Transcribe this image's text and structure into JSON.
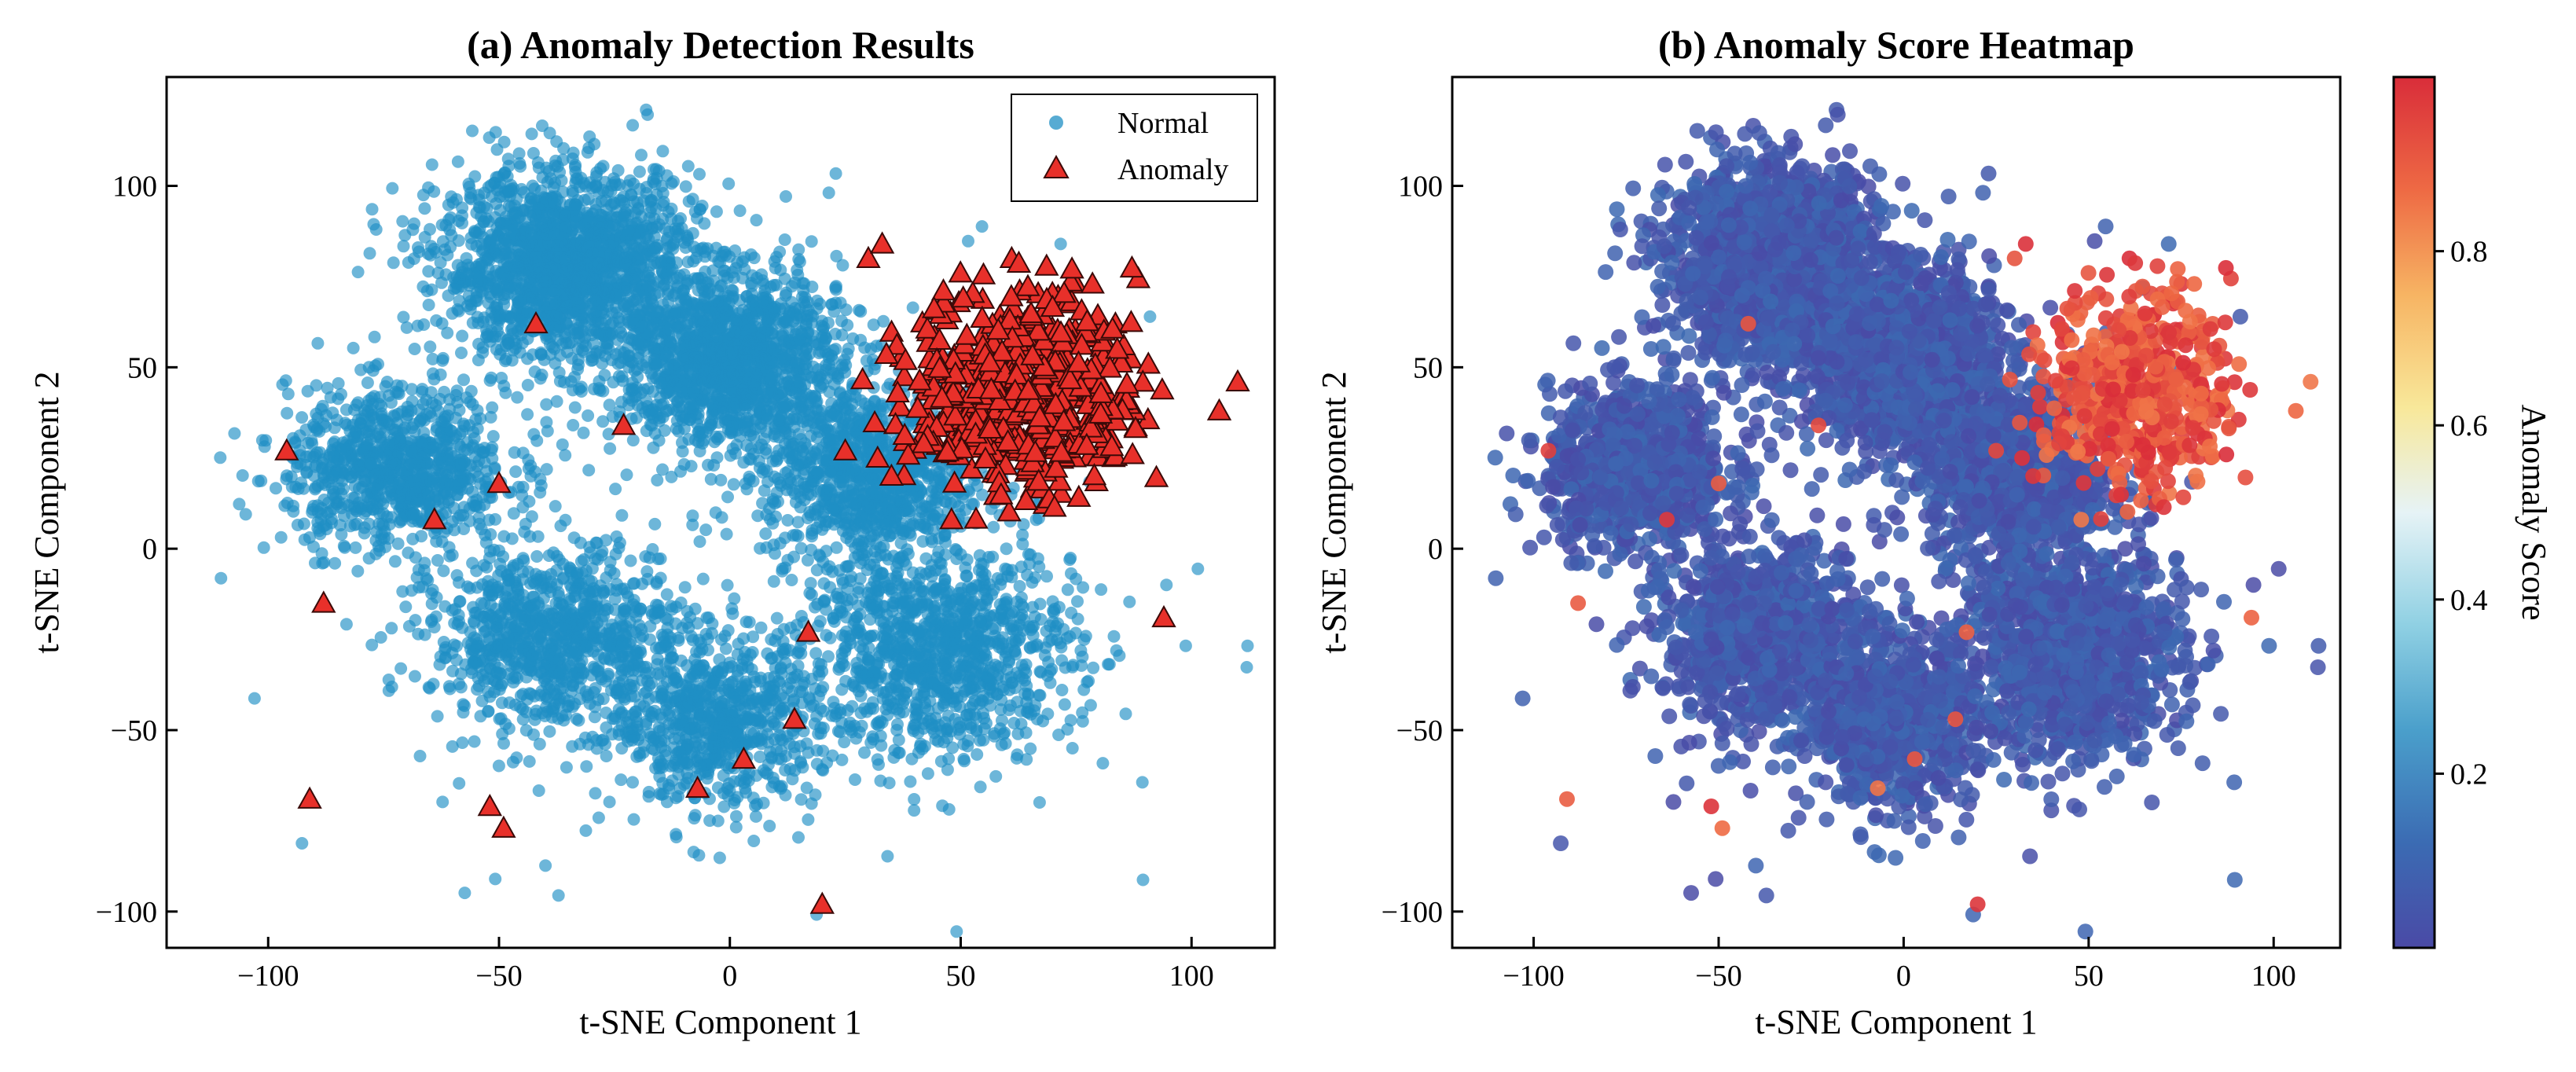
{
  "figure": {
    "panel_a_title": "(a) Anomaly Detection Results",
    "panel_b_title": "(b) Anomaly Score Heatmap",
    "colorbar_label": "Anomaly Score",
    "colorbar_ticks": [
      "0.2",
      "0.4",
      "0.6",
      "0.8"
    ]
  },
  "colors": {
    "normal": "#1f8fc4",
    "anomaly_fill": "#e8302a",
    "anomaly_edge": "#3a0a08",
    "cmap": [
      "#4a4aa6",
      "#3b6bb3",
      "#4a9fcb",
      "#8fd0e3",
      "#e6f3f6",
      "#f8e89a",
      "#f7b463",
      "#ee6a44",
      "#d92d3a"
    ]
  },
  "chart_data": [
    {
      "type": "scatter",
      "title": "(a) Anomaly Detection Results",
      "xlabel": "t-SNE Component 1",
      "ylabel": "t-SNE Component 2",
      "xlim": [
        -122,
        118
      ],
      "ylim": [
        -110,
        130
      ],
      "xticks": [
        -100,
        -50,
        0,
        50,
        100
      ],
      "yticks": [
        -100,
        -50,
        0,
        50,
        100
      ],
      "legend": {
        "position": "top-right",
        "entries": [
          "Normal",
          "Anomaly"
        ]
      },
      "normal_clusters": [
        {
          "cx": -35,
          "cy": 78,
          "sx": 14,
          "sy": 13,
          "n": 1700
        },
        {
          "cx": 0,
          "cy": 52,
          "sx": 12,
          "sy": 12,
          "n": 1400
        },
        {
          "cx": 30,
          "cy": 20,
          "sx": 11,
          "sy": 12,
          "n": 900
        },
        {
          "cx": -72,
          "cy": 22,
          "sx": 12,
          "sy": 11,
          "n": 900
        },
        {
          "cx": -38,
          "cy": -25,
          "sx": 13,
          "sy": 12,
          "n": 900
        },
        {
          "cx": -3,
          "cy": -48,
          "sx": 11,
          "sy": 11,
          "n": 700
        },
        {
          "cx": 45,
          "cy": -28,
          "sx": 15,
          "sy": 15,
          "n": 1100
        },
        {
          "cx": -10,
          "cy": 0,
          "sx": 55,
          "sy": 50,
          "n": 250
        }
      ],
      "anomaly_cluster": {
        "cx": 64,
        "cy": 44,
        "sx": 12,
        "sy": 14,
        "n": 520
      },
      "scattered_anomalies": [
        {
          "x": -96,
          "y": 27
        },
        {
          "x": -64,
          "y": 8
        },
        {
          "x": -50,
          "y": 18
        },
        {
          "x": -42,
          "y": 62
        },
        {
          "x": -23,
          "y": 34
        },
        {
          "x": -88,
          "y": -15
        },
        {
          "x": -91,
          "y": -69
        },
        {
          "x": -52,
          "y": -71
        },
        {
          "x": -49,
          "y": -77
        },
        {
          "x": -7,
          "y": -66
        },
        {
          "x": 3,
          "y": -58
        },
        {
          "x": 14,
          "y": -47
        },
        {
          "x": 17,
          "y": -23
        },
        {
          "x": 20,
          "y": -98
        },
        {
          "x": 94,
          "y": -19
        },
        {
          "x": 25,
          "y": 27
        },
        {
          "x": 32,
          "y": 25
        },
        {
          "x": 35,
          "y": 20
        },
        {
          "x": 48,
          "y": 8
        },
        {
          "x": 42,
          "y": 29
        },
        {
          "x": 30,
          "y": 80
        },
        {
          "x": 33,
          "y": 84
        },
        {
          "x": 106,
          "y": 38
        },
        {
          "x": 110,
          "y": 46
        }
      ]
    },
    {
      "type": "scatter",
      "title": "(b) Anomaly Score Heatmap",
      "xlabel": "t-SNE Component 1",
      "ylabel": "t-SNE Component 2",
      "xlim": [
        -122,
        118
      ],
      "ylim": [
        -110,
        130
      ],
      "xticks": [
        -100,
        -50,
        0,
        50,
        100
      ],
      "yticks": [
        -100,
        -50,
        0,
        50,
        100
      ],
      "colorbar": {
        "label": "Anomaly Score",
        "range": [
          0.0,
          1.0
        ],
        "ticks": [
          0.2,
          0.4,
          0.6,
          0.8
        ]
      },
      "normal_score_range": [
        0.0,
        0.12
      ],
      "anomaly_score_range": [
        0.85,
        1.0
      ]
    }
  ]
}
